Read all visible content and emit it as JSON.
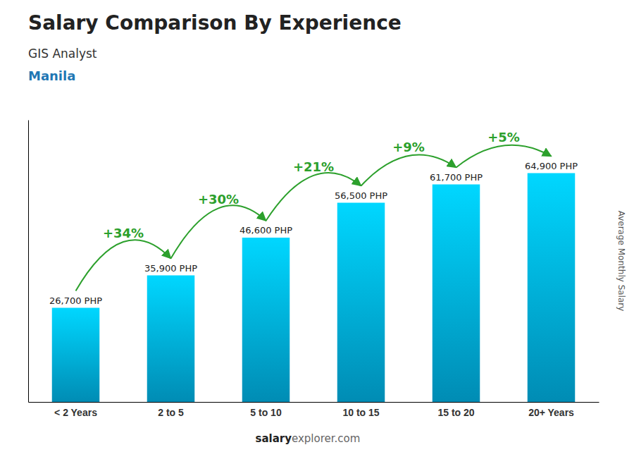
{
  "chart_data": {
    "type": "bar",
    "title": "Salary Comparison By Experience",
    "subtitle": "GIS Analyst",
    "city": "Manila",
    "y_label": "Average Monthly Salary",
    "footer": [
      "salary",
      "explorer.com"
    ],
    "categories": [
      "< 2 Years",
      "2 to 5",
      "5 to 10",
      "10 to 15",
      "15 to 20",
      "20+ Years"
    ],
    "values": [
      26700,
      35900,
      46600,
      56500,
      61700,
      64900
    ],
    "data_labels": true,
    "value_labels": [
      "26,700 PHP",
      "35,900 PHP",
      "46,600 PHP",
      "56,500 PHP",
      "61,700 PHP",
      "64,900 PHP"
    ],
    "pct_changes": [
      null,
      "+34%",
      "+30%",
      "+21%",
      "+9%",
      "+5%"
    ],
    "color": "#008cb4",
    "ylim": [
      0,
      80000
    ],
    "yticks": [],
    "grid": false,
    "tick_labels": "x"
  }
}
